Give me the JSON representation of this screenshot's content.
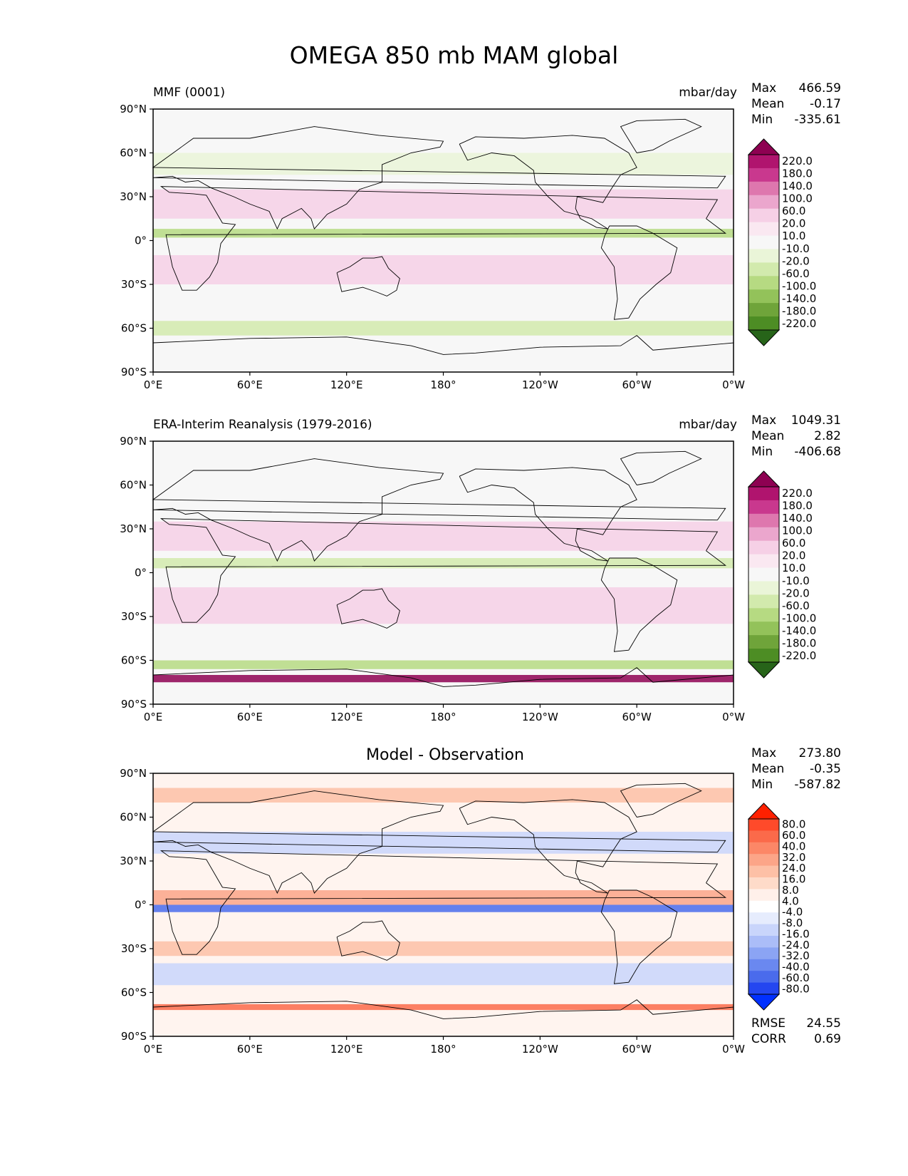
{
  "page_title": "OMEGA 850 mb MAM global",
  "x_ticks": [
    "0°E",
    "60°E",
    "120°E",
    "180°",
    "120°W",
    "60°W",
    "0°W"
  ],
  "y_ticks": [
    "90°N",
    "60°N",
    "30°N",
    "0°",
    "30°S",
    "60°S",
    "90°S"
  ],
  "panels": [
    {
      "left_title": "MMF (0001)",
      "right_title": "mbar/day",
      "center_title": "",
      "stats": [
        {
          "label": "Max",
          "value": "466.59"
        },
        {
          "label": "Mean",
          "value": "-0.17"
        },
        {
          "label": "Min",
          "value": "-335.61"
        }
      ],
      "colorbar": "test",
      "extra_stats": []
    },
    {
      "left_title": "ERA-Interim Reanalysis (1979-2016)",
      "right_title": "mbar/day",
      "center_title": "",
      "stats": [
        {
          "label": "Max",
          "value": "1049.31"
        },
        {
          "label": "Mean",
          "value": "2.82"
        },
        {
          "label": "Min",
          "value": "-406.68"
        }
      ],
      "colorbar": "ref",
      "extra_stats": []
    },
    {
      "left_title": "",
      "right_title": "",
      "center_title": "Model - Observation",
      "stats": [
        {
          "label": "Max",
          "value": "273.80"
        },
        {
          "label": "Mean",
          "value": "-0.35"
        },
        {
          "label": "Min",
          "value": "-587.82"
        }
      ],
      "colorbar": "diff",
      "extra_stats": [
        {
          "label": "RMSE",
          "value": "24.55"
        },
        {
          "label": "CORR",
          "value": "0.69"
        }
      ]
    }
  ],
  "colorbars": {
    "test": {
      "labels": [
        "220.0",
        "180.0",
        "140.0",
        "100.0",
        "60.0",
        "20.0",
        "10.0",
        "-10.0",
        "-20.0",
        "-60.0",
        "-100.0",
        "-140.0",
        "-180.0",
        "-220.0"
      ],
      "colors": [
        "#8e0152",
        "#b0146e",
        "#c9388e",
        "#de77ae",
        "#eba6cd",
        "#f6d0e6",
        "#fae8f1",
        "#f7f7f7",
        "#eaf5d8",
        "#d2eaad",
        "#b6da82",
        "#93c25a",
        "#6fa43a",
        "#4d8d24",
        "#276419"
      ],
      "top_color": "#8e0152",
      "bottom_color": "#276419"
    },
    "ref": {
      "labels": [
        "220.0",
        "180.0",
        "140.0",
        "100.0",
        "60.0",
        "20.0",
        "10.0",
        "-10.0",
        "-20.0",
        "-60.0",
        "-100.0",
        "-140.0",
        "-180.0",
        "-220.0"
      ],
      "colors": [
        "#8e0152",
        "#b0146e",
        "#c9388e",
        "#de77ae",
        "#eba6cd",
        "#f6d0e6",
        "#fae8f1",
        "#f7f7f7",
        "#eaf5d8",
        "#d2eaad",
        "#b6da82",
        "#93c25a",
        "#6fa43a",
        "#4d8d24",
        "#276419"
      ],
      "top_color": "#8e0152",
      "bottom_color": "#276419"
    },
    "diff": {
      "labels": [
        "80.0",
        "60.0",
        "40.0",
        "32.0",
        "24.0",
        "16.0",
        "8.0",
        "4.0",
        "-4.0",
        "-8.0",
        "-16.0",
        "-24.0",
        "-32.0",
        "-40.0",
        "-60.0",
        "-80.0"
      ],
      "colors": [
        "#ff2000",
        "#ff4a2a",
        "#fb6a4a",
        "#fc8767",
        "#fca588",
        "#fdc0a6",
        "#fedbc9",
        "#fff0ea",
        "#ffffff",
        "#e6ecfd",
        "#c9d5fb",
        "#abbdf8",
        "#8ba4f4",
        "#6a88f0",
        "#4a6bec",
        "#2446f0",
        "#0030ff"
      ],
      "top_color": "#ff2000",
      "bottom_color": "#0030ff"
    }
  },
  "chart_data": [
    {
      "type": "heatmap",
      "title": "MMF (0001)",
      "units": "mbar/day",
      "variable": "OMEGA 850 mb MAM global",
      "xlim": [
        0,
        360
      ],
      "ylim": [
        -90,
        90
      ],
      "x_tick_values": [
        0,
        60,
        120,
        180,
        240,
        300,
        360
      ],
      "y_tick_values": [
        90,
        60,
        30,
        0,
        -30,
        -60,
        -90
      ],
      "max": 466.59,
      "mean": -0.17,
      "min": -335.61,
      "levels": [
        -220,
        -180,
        -140,
        -100,
        -60,
        -20,
        -10,
        10,
        20,
        60,
        100,
        140,
        180,
        220
      ],
      "coastlines": true
    },
    {
      "type": "heatmap",
      "title": "ERA-Interim Reanalysis (1979-2016)",
      "units": "mbar/day",
      "variable": "OMEGA 850 mb MAM global",
      "xlim": [
        0,
        360
      ],
      "ylim": [
        -90,
        90
      ],
      "x_tick_values": [
        0,
        60,
        120,
        180,
        240,
        300,
        360
      ],
      "y_tick_values": [
        90,
        60,
        30,
        0,
        -30,
        -60,
        -90
      ],
      "max": 1049.31,
      "mean": 2.82,
      "min": -406.68,
      "levels": [
        -220,
        -180,
        -140,
        -100,
        -60,
        -20,
        -10,
        10,
        20,
        60,
        100,
        140,
        180,
        220
      ],
      "coastlines": true
    },
    {
      "type": "heatmap",
      "title": "Model - Observation",
      "variable": "OMEGA 850 mb MAM global",
      "xlim": [
        0,
        360
      ],
      "ylim": [
        -90,
        90
      ],
      "x_tick_values": [
        0,
        60,
        120,
        180,
        240,
        300,
        360
      ],
      "y_tick_values": [
        90,
        60,
        30,
        0,
        -30,
        -60,
        -90
      ],
      "max": 273.8,
      "mean": -0.35,
      "min": -587.82,
      "rmse": 24.55,
      "corr": 0.69,
      "levels": [
        -80,
        -60,
        -40,
        -32,
        -24,
        -16,
        -8,
        -4,
        4,
        8,
        16,
        24,
        32,
        40,
        60,
        80
      ],
      "coastlines": true
    }
  ]
}
